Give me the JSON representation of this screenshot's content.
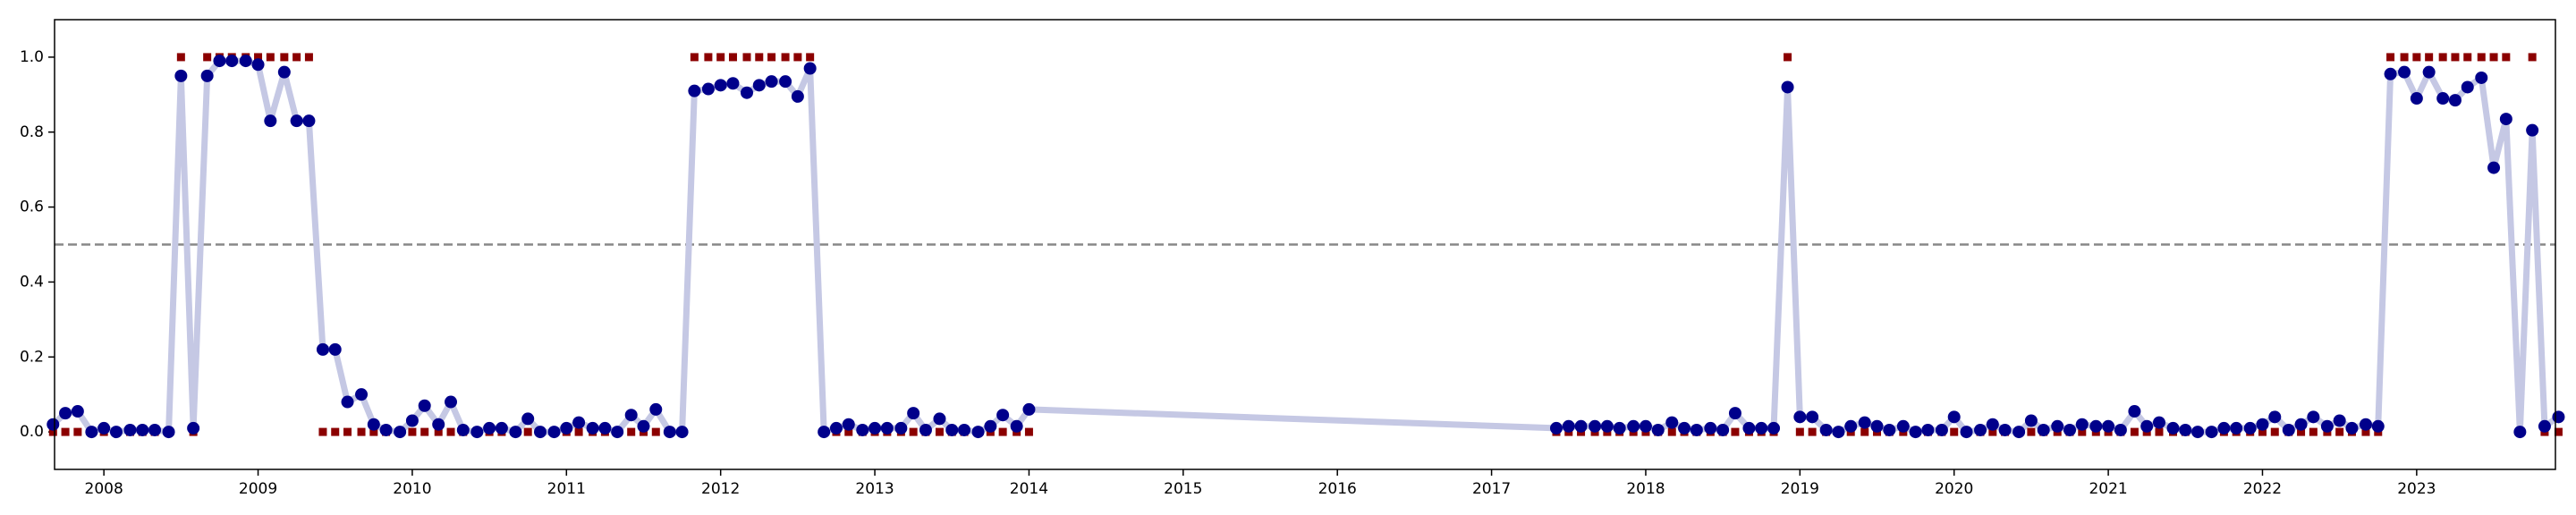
{
  "chart_data": {
    "type": "line",
    "x": [
      2007.67,
      2007.75,
      2007.83,
      2007.92,
      2008.0,
      2008.08,
      2008.17,
      2008.25,
      2008.33,
      2008.42,
      2008.5,
      2008.58,
      2008.67,
      2008.75,
      2008.83,
      2008.92,
      2009.0,
      2009.08,
      2009.17,
      2009.25,
      2009.33,
      2009.42,
      2009.5,
      2009.58,
      2009.67,
      2009.75,
      2009.83,
      2009.92,
      2010.0,
      2010.08,
      2010.17,
      2010.25,
      2010.33,
      2010.42,
      2010.5,
      2010.58,
      2010.67,
      2010.75,
      2010.83,
      2010.92,
      2011.0,
      2011.08,
      2011.17,
      2011.25,
      2011.33,
      2011.42,
      2011.5,
      2011.58,
      2011.67,
      2011.75,
      2011.83,
      2011.92,
      2012.0,
      2012.08,
      2012.17,
      2012.25,
      2012.33,
      2012.42,
      2012.5,
      2012.58,
      2012.67,
      2012.75,
      2012.83,
      2012.92,
      2013.0,
      2013.08,
      2013.17,
      2013.25,
      2013.33,
      2013.42,
      2013.5,
      2013.58,
      2013.67,
      2013.75,
      2013.83,
      2013.92,
      2014.0,
      2017.42,
      2017.5,
      2017.58,
      2017.67,
      2017.75,
      2017.83,
      2017.92,
      2018.0,
      2018.08,
      2018.17,
      2018.25,
      2018.33,
      2018.42,
      2018.5,
      2018.58,
      2018.67,
      2018.75,
      2018.83,
      2018.92,
      2019.0,
      2019.08,
      2019.17,
      2019.25,
      2019.33,
      2019.42,
      2019.5,
      2019.58,
      2019.67,
      2019.75,
      2019.83,
      2019.92,
      2020.0,
      2020.08,
      2020.17,
      2020.25,
      2020.33,
      2020.42,
      2020.5,
      2020.58,
      2020.67,
      2020.75,
      2020.83,
      2020.92,
      2021.0,
      2021.08,
      2021.17,
      2021.25,
      2021.33,
      2021.42,
      2021.5,
      2021.58,
      2021.67,
      2021.75,
      2021.83,
      2021.92,
      2022.0,
      2022.08,
      2022.17,
      2022.25,
      2022.33,
      2022.42,
      2022.5,
      2022.58,
      2022.67,
      2022.75,
      2022.83,
      2022.92,
      2023.0,
      2023.08,
      2023.17,
      2023.25,
      2023.33,
      2023.42,
      2023.5,
      2023.58,
      2023.67,
      2023.75,
      2023.83,
      2023.92
    ],
    "series": [
      {
        "marker": "circle",
        "color": "#00008b",
        "line_color": "#c5c8e4",
        "values": [
          0.02,
          0.05,
          0.055,
          0.0,
          0.01,
          0.0,
          0.005,
          0.005,
          0.005,
          0.0,
          0.95,
          0.01,
          0.95,
          0.99,
          0.99,
          0.99,
          0.98,
          0.83,
          0.96,
          0.83,
          0.83,
          0.22,
          0.22,
          0.08,
          0.1,
          0.02,
          0.005,
          0.0,
          0.03,
          0.07,
          0.02,
          0.08,
          0.005,
          0.0,
          0.01,
          0.01,
          0.0,
          0.035,
          0.0,
          0.0,
          0.01,
          0.025,
          0.01,
          0.01,
          0.0,
          0.045,
          0.015,
          0.06,
          0.0,
          0.0,
          0.91,
          0.915,
          0.925,
          0.93,
          0.905,
          0.925,
          0.935,
          0.935,
          0.895,
          0.97,
          0.0,
          0.01,
          0.02,
          0.005,
          0.01,
          0.01,
          0.01,
          0.05,
          0.005,
          0.035,
          0.005,
          0.005,
          0.0,
          0.015,
          0.045,
          0.015,
          0.06,
          0.01,
          0.015,
          0.015,
          0.015,
          0.015,
          0.01,
          0.015,
          0.015,
          0.005,
          0.025,
          0.01,
          0.005,
          0.01,
          0.005,
          0.05,
          0.01,
          0.01,
          0.01,
          0.92,
          0.04,
          0.04,
          0.005,
          0.0,
          0.015,
          0.025,
          0.015,
          0.005,
          0.015,
          0.0,
          0.005,
          0.005,
          0.04,
          0.0,
          0.005,
          0.02,
          0.005,
          0.0,
          0.03,
          0.005,
          0.015,
          0.005,
          0.02,
          0.015,
          0.015,
          0.005,
          0.055,
          0.015,
          0.025,
          0.01,
          0.005,
          0.0,
          0.0,
          0.01,
          0.01,
          0.01,
          0.02,
          0.04,
          0.005,
          0.02,
          0.04,
          0.015,
          0.03,
          0.01,
          0.02,
          0.015,
          0.955,
          0.96,
          0.89,
          0.96,
          0.89,
          0.885,
          0.92,
          0.945,
          0.705,
          0.835,
          0.0,
          0.805,
          0.015,
          0.04
        ]
      },
      {
        "marker": "square",
        "color": "#8b0000",
        "values": [
          0,
          0,
          0,
          0,
          0,
          0,
          0,
          0,
          0,
          0,
          1,
          0,
          1,
          1,
          1,
          1,
          1,
          1,
          1,
          1,
          1,
          0,
          0,
          0,
          0,
          0,
          0,
          0,
          0,
          0,
          0,
          0,
          0,
          0,
          0,
          0,
          0,
          0,
          0,
          0,
          0,
          0,
          0,
          0,
          0,
          0,
          0,
          0,
          0,
          0,
          1,
          1,
          1,
          1,
          1,
          1,
          1,
          1,
          1,
          1,
          0,
          0,
          0,
          0,
          0,
          0,
          0,
          0,
          0,
          0,
          0,
          0,
          0,
          0,
          0,
          0,
          0,
          0,
          0,
          0,
          0,
          0,
          0,
          0,
          0,
          0,
          0,
          0,
          0,
          0,
          0,
          0,
          0,
          0,
          0,
          1,
          0,
          0,
          0,
          0,
          0,
          0,
          0,
          0,
          0,
          0,
          0,
          0,
          0,
          0,
          0,
          0,
          0,
          0,
          0,
          0,
          0,
          0,
          0,
          0,
          0,
          0,
          0,
          0,
          0,
          0,
          0,
          0,
          0,
          0,
          0,
          0,
          0,
          0,
          0,
          0,
          0,
          0,
          0,
          0,
          0,
          0,
          1,
          1,
          1,
          1,
          1,
          1,
          1,
          1,
          1,
          1,
          0,
          1,
          0,
          0
        ]
      }
    ],
    "threshold": 0.5,
    "threshold_color": "#888888",
    "xlim": [
      2007.68,
      2023.9
    ],
    "xticks": [
      2008,
      2009,
      2010,
      2011,
      2012,
      2013,
      2014,
      2015,
      2016,
      2017,
      2018,
      2019,
      2020,
      2021,
      2022,
      2023
    ],
    "ylim": [
      -0.1,
      1.1
    ],
    "yticks": [
      {
        "value": 0,
        "label": "0.0"
      },
      0.2,
      0.4,
      0.6,
      0.8,
      {
        "value": 1,
        "label": "1.0"
      }
    ],
    "grid": false
  }
}
